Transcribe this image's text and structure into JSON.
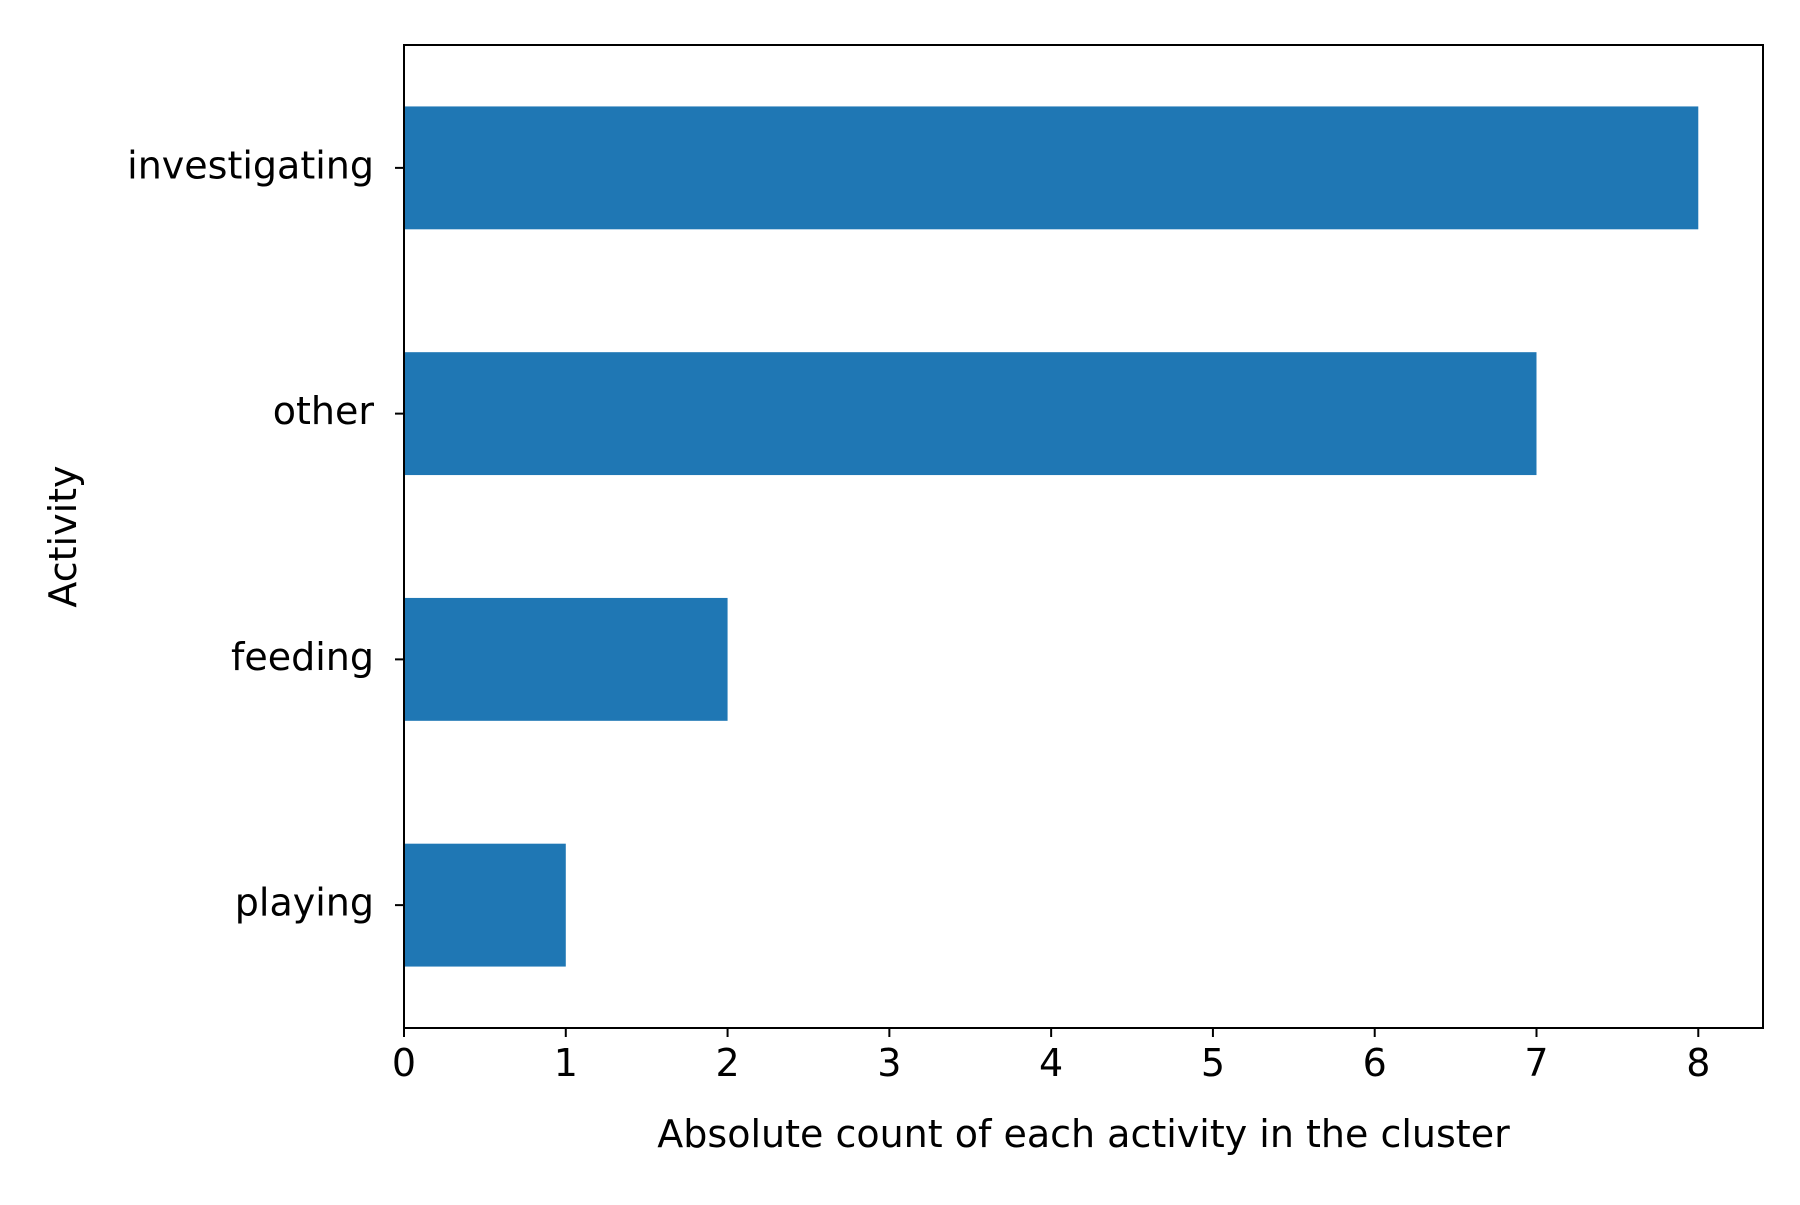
{
  "chart_data": {
    "type": "bar",
    "orientation": "horizontal",
    "categories": [
      "investigating",
      "other",
      "feeding",
      "playing"
    ],
    "values": [
      8,
      7,
      2,
      1
    ],
    "title": "",
    "xlabel": "Absolute count of each activity in the cluster",
    "ylabel": "Activity",
    "xlim": [
      0,
      8.4
    ],
    "xticks": [
      0,
      1,
      2,
      3,
      4,
      5,
      6,
      7,
      8
    ],
    "grid": false,
    "bar_color": "#1f77b4"
  }
}
